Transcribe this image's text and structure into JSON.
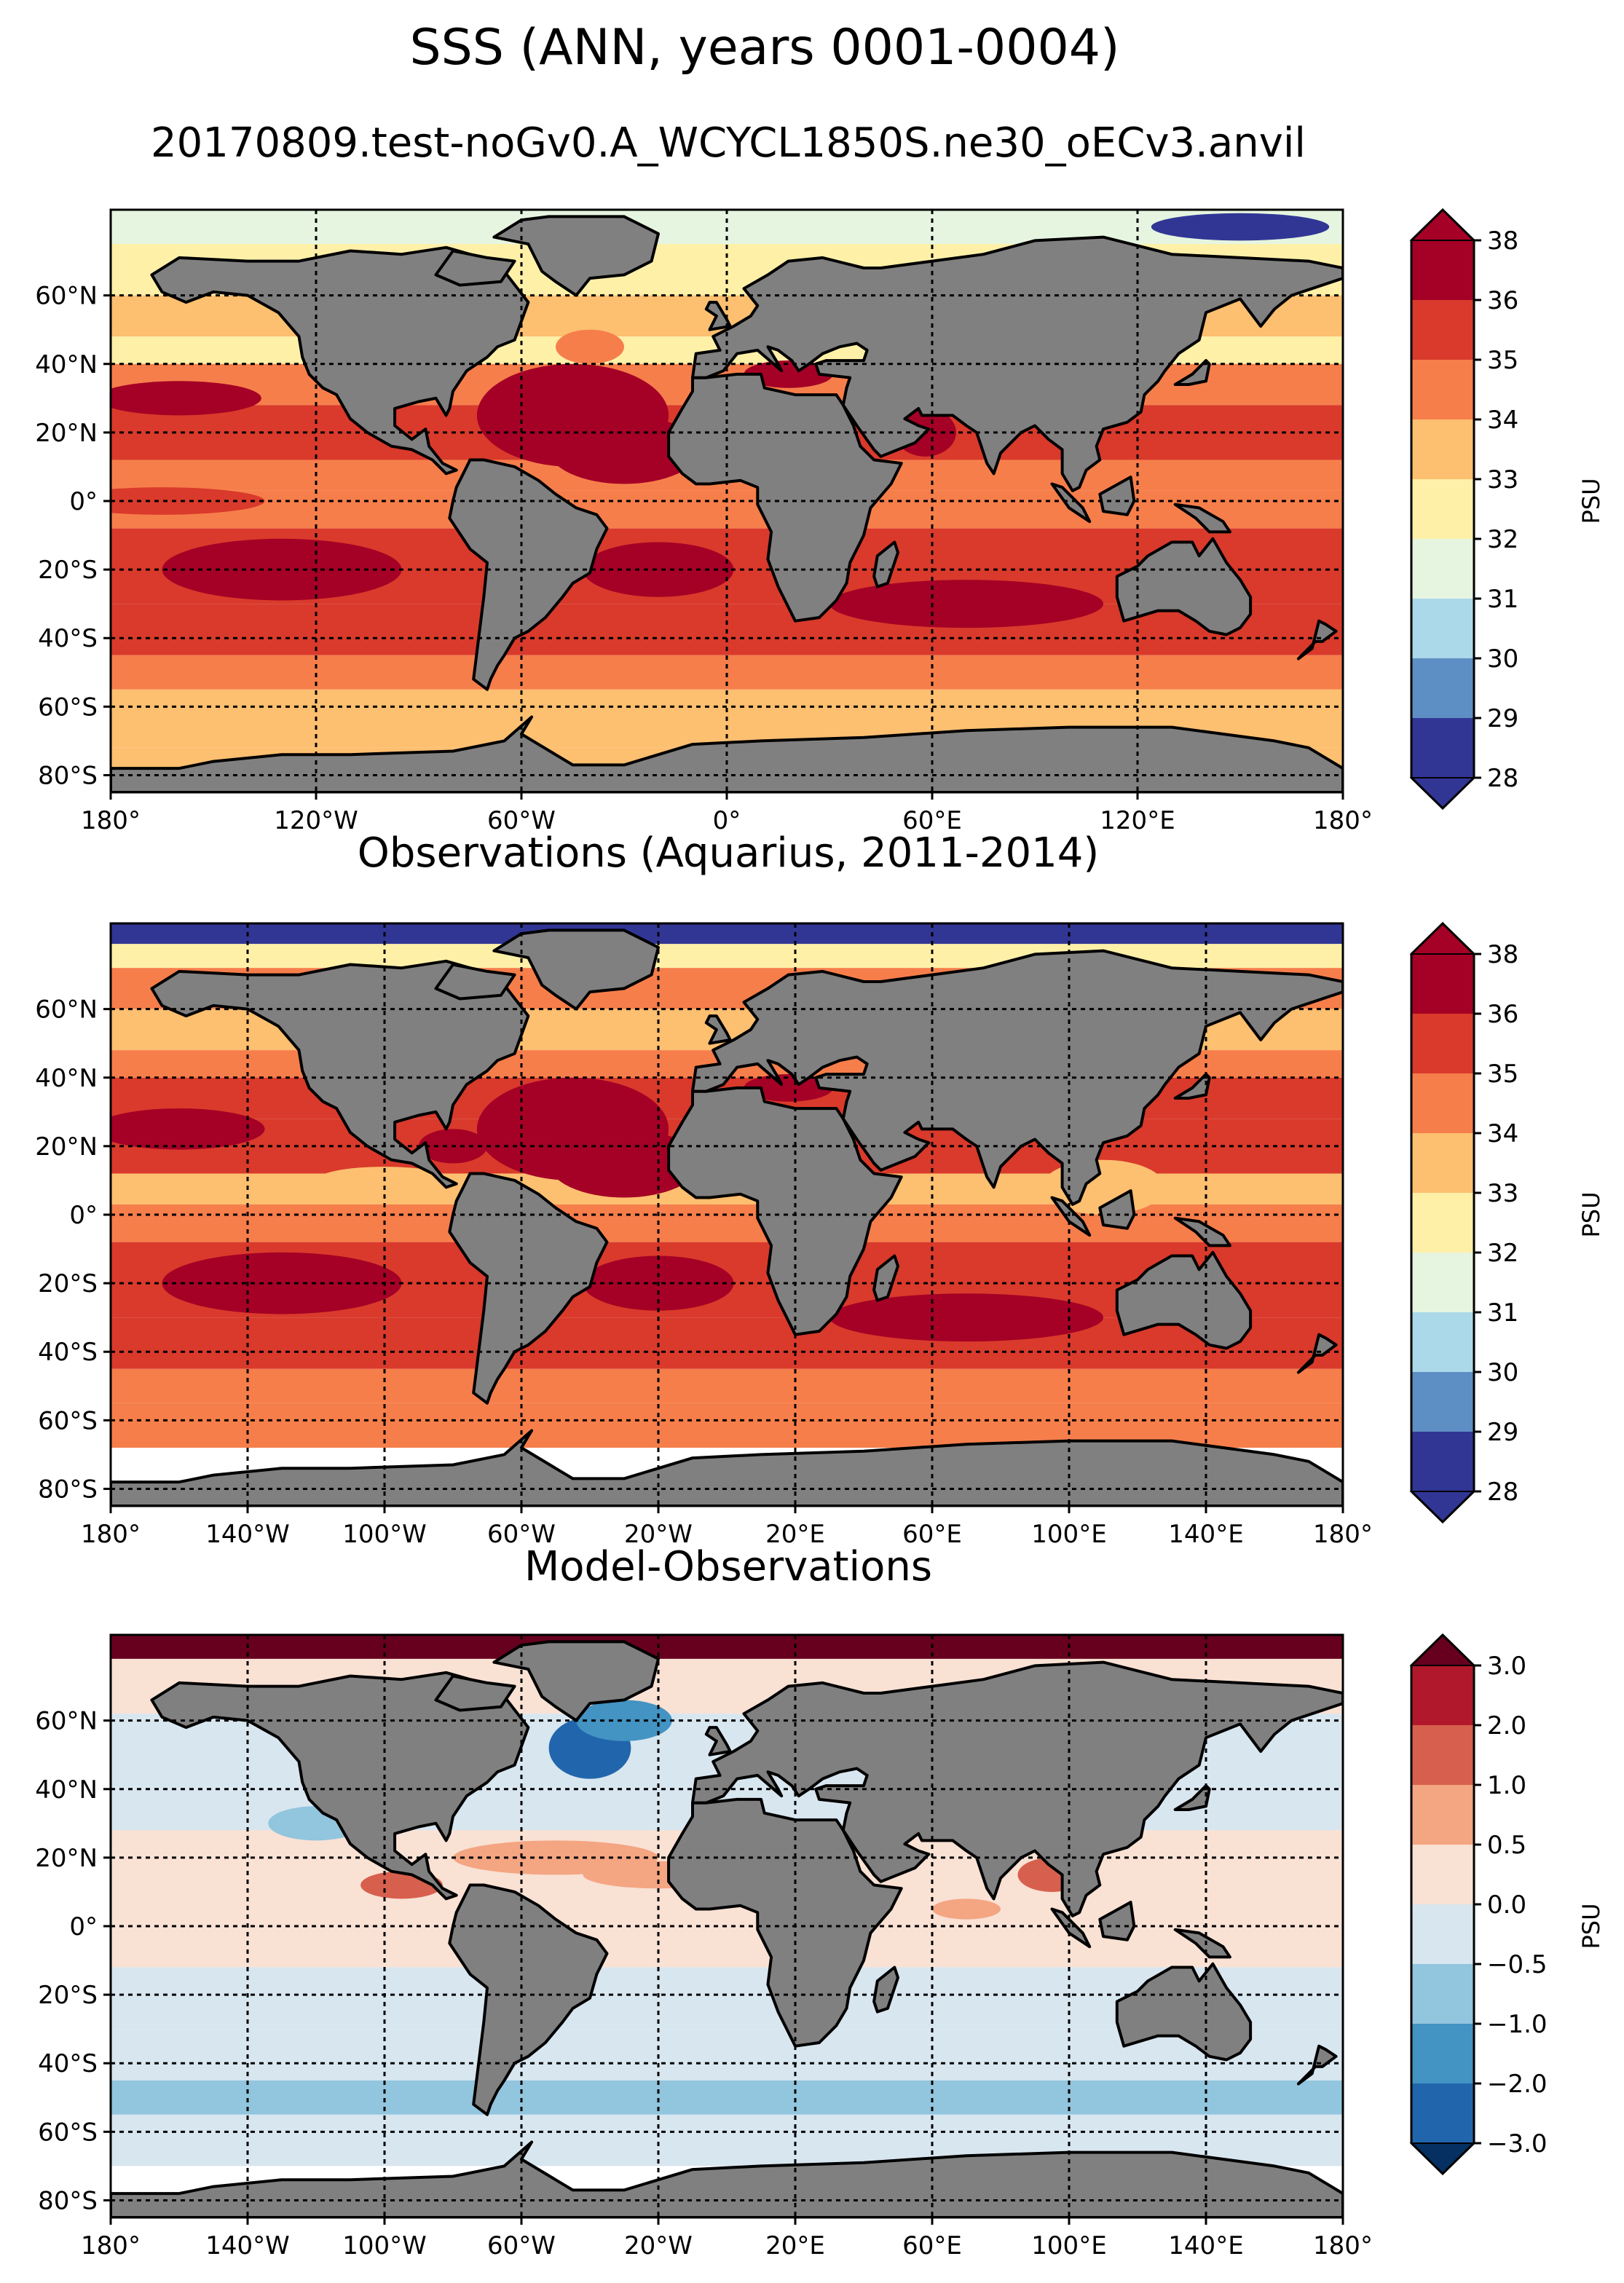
{
  "figure": {
    "title": "SSS (ANN, years 0001-0004)",
    "subtitle": "20170809.test-noGv0.A_WCYCL1850S.ne30_oECv3.anvil"
  },
  "chart_data": [
    {
      "type": "heatmap",
      "title": "",
      "kind": "model",
      "xlabel": "",
      "ylabel": "",
      "xlim": [
        -180,
        180
      ],
      "ylim": [
        -85,
        85
      ],
      "xticks": [
        -180,
        -120,
        -60,
        0,
        60,
        120,
        180
      ],
      "xtick_labels": [
        "180°",
        "120°W",
        "60°W",
        "0°",
        "60°E",
        "120°E",
        "180°"
      ],
      "yticks": [
        60,
        40,
        20,
        0,
        -20,
        -40,
        -60,
        -80
      ],
      "ytick_labels": [
        "60°N",
        "40°N",
        "20°N",
        "0°",
        "20°S",
        "40°S",
        "60°S",
        "80°S"
      ],
      "grid": true,
      "colorbar": {
        "label": "PSU",
        "levels": [
          28,
          29,
          30,
          31,
          32,
          33,
          34,
          35,
          36,
          38
        ],
        "tick_labels": [
          "28",
          "29",
          "30",
          "31",
          "32",
          "33",
          "34",
          "35",
          "36",
          "38"
        ],
        "colors": [
          "#313695",
          "#5e8fc4",
          "#abd9e9",
          "#e6f5e0",
          "#fff0a8",
          "#fdbf70",
          "#f67e4b",
          "#d93a2b",
          "#a50026"
        ],
        "extend_min_color": "#313695",
        "extend_max_color": "#a50026"
      }
    },
    {
      "type": "heatmap",
      "title": "Observations (Aquarius, 2011-2014)",
      "kind": "obs",
      "xlabel": "",
      "ylabel": "",
      "xlim": [
        -180,
        180
      ],
      "ylim": [
        -85,
        85
      ],
      "xticks": [
        -180,
        -140,
        -100,
        -60,
        -20,
        20,
        60,
        100,
        140,
        180
      ],
      "xtick_labels": [
        "180°",
        "140°W",
        "100°W",
        "60°W",
        "20°W",
        "20°E",
        "60°E",
        "100°E",
        "140°E",
        "180°"
      ],
      "yticks": [
        60,
        40,
        20,
        0,
        -20,
        -40,
        -60,
        -80
      ],
      "ytick_labels": [
        "60°N",
        "40°N",
        "20°N",
        "0°",
        "20°S",
        "40°S",
        "60°S",
        "80°S"
      ],
      "grid": true,
      "colorbar": {
        "label": "PSU",
        "levels": [
          28,
          29,
          30,
          31,
          32,
          33,
          34,
          35,
          36,
          38
        ],
        "tick_labels": [
          "28",
          "29",
          "30",
          "31",
          "32",
          "33",
          "34",
          "35",
          "36",
          "38"
        ],
        "colors": [
          "#313695",
          "#5e8fc4",
          "#abd9e9",
          "#e6f5e0",
          "#fff0a8",
          "#fdbf70",
          "#f67e4b",
          "#d93a2b",
          "#a50026"
        ],
        "extend_min_color": "#313695",
        "extend_max_color": "#a50026"
      }
    },
    {
      "type": "heatmap",
      "title": "Model-Observations",
      "kind": "diff",
      "xlabel": "",
      "ylabel": "",
      "xlim": [
        -180,
        180
      ],
      "ylim": [
        -85,
        85
      ],
      "xticks": [
        -180,
        -140,
        -100,
        -60,
        -20,
        20,
        60,
        100,
        140,
        180
      ],
      "xtick_labels": [
        "180°",
        "140°W",
        "100°W",
        "60°W",
        "20°W",
        "20°E",
        "60°E",
        "100°E",
        "140°E",
        "180°"
      ],
      "yticks": [
        60,
        40,
        20,
        0,
        -20,
        -40,
        -60,
        -80
      ],
      "ytick_labels": [
        "60°N",
        "40°N",
        "20°N",
        "0°",
        "20°S",
        "40°S",
        "60°S",
        "80°S"
      ],
      "grid": true,
      "colorbar": {
        "label": "PSU",
        "levels": [
          -3.0,
          -2.0,
          -1.0,
          -0.5,
          0.0,
          0.5,
          1.0,
          2.0,
          3.0
        ],
        "tick_labels": [
          "−3.0",
          "−2.0",
          "−1.0",
          "−0.5",
          "0.0",
          "0.5",
          "1.0",
          "2.0",
          "3.0"
        ],
        "colors": [
          "#2166ac",
          "#4393c3",
          "#92c5de",
          "#d8e6f0",
          "#f9e1d4",
          "#f4a582",
          "#d6604d",
          "#b2182b"
        ],
        "extend_min_color": "#053061",
        "extend_max_color": "#67001f"
      }
    }
  ],
  "map_colors": {
    "land": "#808080",
    "coast": "#000000",
    "nodata": "#ffffff"
  }
}
